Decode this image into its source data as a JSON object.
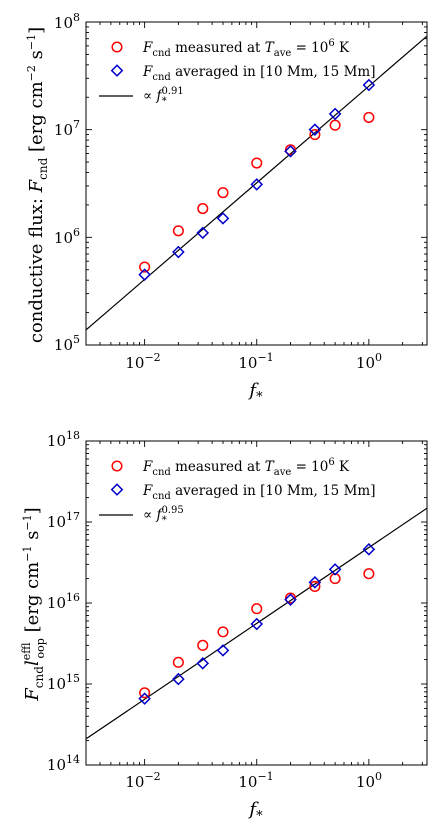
{
  "chart_data": [
    {
      "type": "scatter",
      "xscale": "log",
      "yscale": "log",
      "xlim": [
        0.003,
        3.3
      ],
      "ylim": [
        100000,
        100000000
      ],
      "xlabel": "f_*",
      "ylabel": "conductive flux: F_cnd [erg cm^-2 s^-1]",
      "x_tick_labels": [
        "10^-2",
        "10^-1",
        "10^0"
      ],
      "y_tick_labels": [
        "10^5",
        "10^6",
        "10^7",
        "10^8"
      ],
      "legend_position": "upper-left",
      "series": [
        {
          "name": "F_cnd measured at T_ave = 10^6 K",
          "marker": "circle",
          "color": "#ff0000",
          "x": [
            0.01,
            0.02,
            0.033,
            0.05,
            0.1,
            0.2,
            0.33,
            0.5,
            1.0
          ],
          "y": [
            530000,
            1150000,
            1850000,
            2600000,
            4900000,
            6500000,
            9000000,
            11000000,
            13000000
          ]
        },
        {
          "name": "F_cnd averaged in [10 Mm, 15 Mm]",
          "marker": "diamond",
          "color": "#0000cc",
          "x": [
            0.01,
            0.02,
            0.033,
            0.05,
            0.1,
            0.2,
            0.33,
            0.5,
            1.0
          ],
          "y": [
            450000,
            730000,
            1100000,
            1500000,
            3100000,
            6300000,
            10000000,
            14000000,
            26000000
          ]
        },
        {
          "name": "∝ f_*^0.91",
          "type": "line",
          "color": "#000000",
          "x": [
            0.003,
            3.3
          ],
          "y": [
            138000,
            74000000
          ]
        }
      ]
    },
    {
      "type": "scatter",
      "xscale": "log",
      "yscale": "log",
      "xlim": [
        0.003,
        3.3
      ],
      "ylim": [
        100000000000000,
        1000000000000000000
      ],
      "xlabel": "f_*",
      "ylabel": "F_cnd l_loop^eff [erg cm^-1 s^-1]",
      "x_tick_labels": [
        "10^-2",
        "10^-1",
        "10^0"
      ],
      "y_tick_labels": [
        "10^14",
        "10^15",
        "10^16",
        "10^17",
        "10^18"
      ],
      "legend_position": "upper-left",
      "series": [
        {
          "name": "F_cnd measured at T_ave = 10^6 K",
          "marker": "circle",
          "color": "#ff0000",
          "x": [
            0.01,
            0.02,
            0.033,
            0.05,
            0.1,
            0.2,
            0.33,
            0.5,
            1.0
          ],
          "y": [
            780000000000000,
            1850000000000000,
            3000000000000000,
            4400000000000000,
            8500000000000000,
            11500000000000000,
            16000000000000000,
            20000000000000000,
            23000000000000000
          ]
        },
        {
          "name": "F_cnd averaged in [10 Mm, 15 Mm]",
          "marker": "diamond",
          "color": "#0000cc",
          "x": [
            0.01,
            0.02,
            0.033,
            0.05,
            0.1,
            0.2,
            0.33,
            0.5,
            1.0
          ],
          "y": [
            660000000000000,
            1150000000000000,
            1800000000000000,
            2600000000000000,
            5500000000000000,
            11000000000000000,
            18000000000000000,
            26000000000000000,
            46000000000000000
          ]
        },
        {
          "name": "∝ f_*^0.95",
          "type": "line",
          "color": "#000000",
          "x": [
            0.003,
            3.3
          ],
          "y": [
            210000000000000,
            148000000000000000
          ]
        }
      ]
    }
  ]
}
